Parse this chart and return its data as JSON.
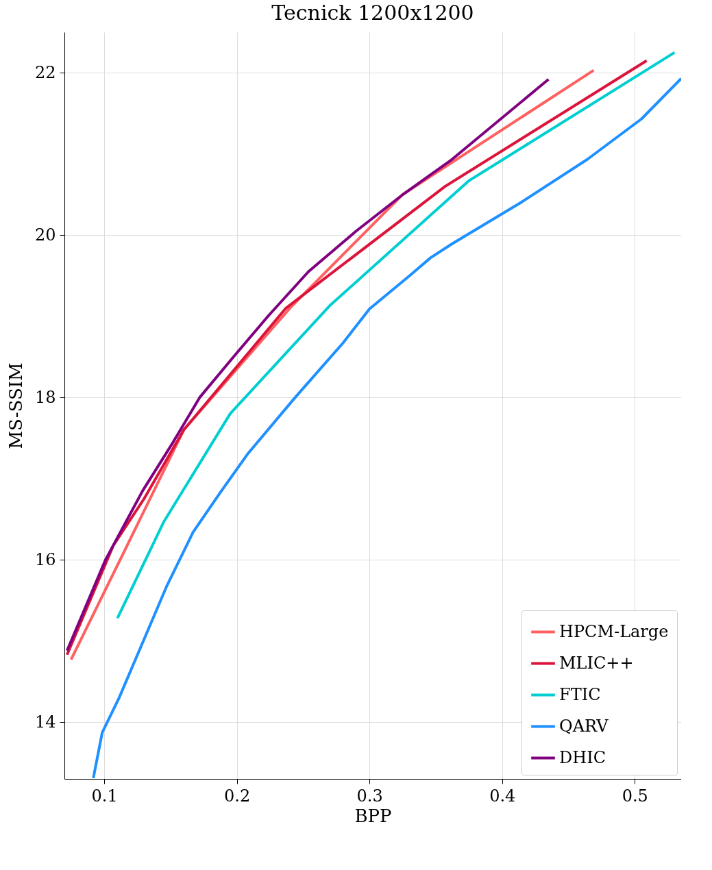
{
  "chart_data": {
    "type": "line",
    "title": "Tecnick 1200x1200",
    "xlabel": "BPP",
    "ylabel": "MS-SSIM",
    "xlim": [
      0.07,
      0.535
    ],
    "xticks": [
      0.1,
      0.2,
      0.3,
      0.4,
      0.5
    ],
    "ylim": [
      13.3,
      22.5
    ],
    "yticks": [
      14,
      16,
      18,
      20,
      22
    ],
    "grid": true,
    "legend": "bottom right",
    "series": [
      {
        "name": "HPCM-Large",
        "color": "#ff6060",
        "x": [
          0.075,
          0.115,
          0.16,
          0.24,
          0.325,
          0.469
        ],
        "values": [
          14.77,
          16.1,
          17.6,
          19.1,
          20.5,
          22.03
        ]
      },
      {
        "name": "MLIC++",
        "color": "#dc143c",
        "x": [
          0.072,
          0.107,
          0.13,
          0.16,
          0.237,
          0.357,
          0.509
        ],
        "values": [
          14.83,
          16.18,
          16.75,
          17.6,
          19.1,
          20.6,
          22.15
        ]
      },
      {
        "name": "FTIC",
        "color": "#00ced1",
        "x": [
          0.11,
          0.145,
          0.195,
          0.27,
          0.375,
          0.53
        ],
        "values": [
          15.28,
          16.47,
          17.8,
          19.13,
          20.67,
          22.25
        ]
      },
      {
        "name": "QARV",
        "color": "#1e90ff",
        "x": [
          0.0918,
          0.0985,
          0.111,
          0.147,
          0.167,
          0.188,
          0.208,
          0.244,
          0.28,
          0.3,
          0.331,
          0.346,
          0.362,
          0.413,
          0.464,
          0.505,
          0.535
        ],
        "values": [
          13.31,
          13.87,
          14.29,
          15.67,
          16.34,
          16.84,
          17.3,
          18.0,
          18.67,
          19.09,
          19.51,
          19.72,
          19.89,
          20.39,
          20.93,
          21.43,
          21.93
        ]
      },
      {
        "name": "DHIC",
        "color": "#800080",
        "x": [
          0.072,
          0.101,
          0.129,
          0.152,
          0.172,
          0.198,
          0.224,
          0.254,
          0.29,
          0.326,
          0.362,
          0.435
        ],
        "values": [
          14.88,
          16.0,
          16.85,
          17.45,
          18.0,
          18.51,
          19.01,
          19.55,
          20.05,
          20.51,
          20.93,
          21.92
        ]
      }
    ]
  }
}
